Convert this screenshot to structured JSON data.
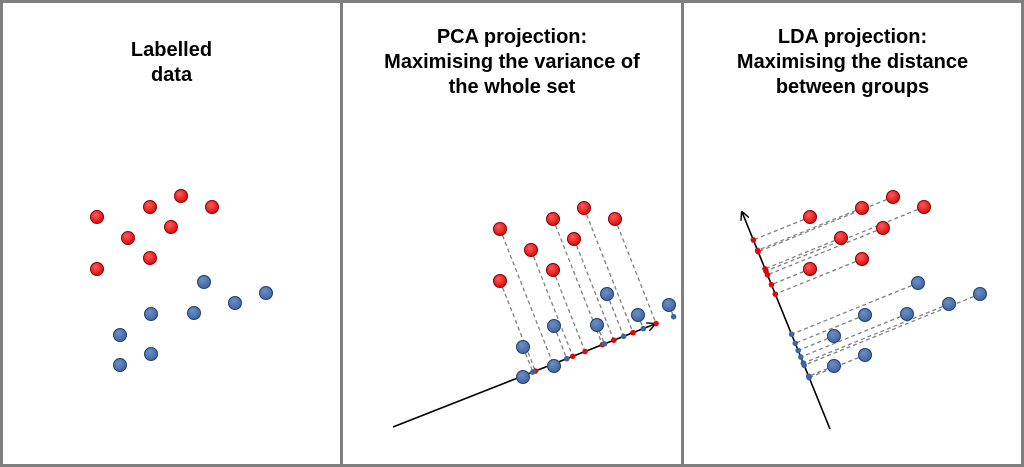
{
  "colors": {
    "class_a": "#d90b0b",
    "class_b": "#3f64a0",
    "projection_line": "#808080",
    "axis": "#000000",
    "panel_border": "#7f7f7f"
  },
  "panels": [
    {
      "id": "labelled",
      "title": "Labelled\ndata"
    },
    {
      "id": "pca",
      "title": "PCA projection:\nMaximising the variance of\nthe whole set"
    },
    {
      "id": "lda",
      "title": "LDA projection:\nMaximising the distance\nbetween groups"
    }
  ]
}
